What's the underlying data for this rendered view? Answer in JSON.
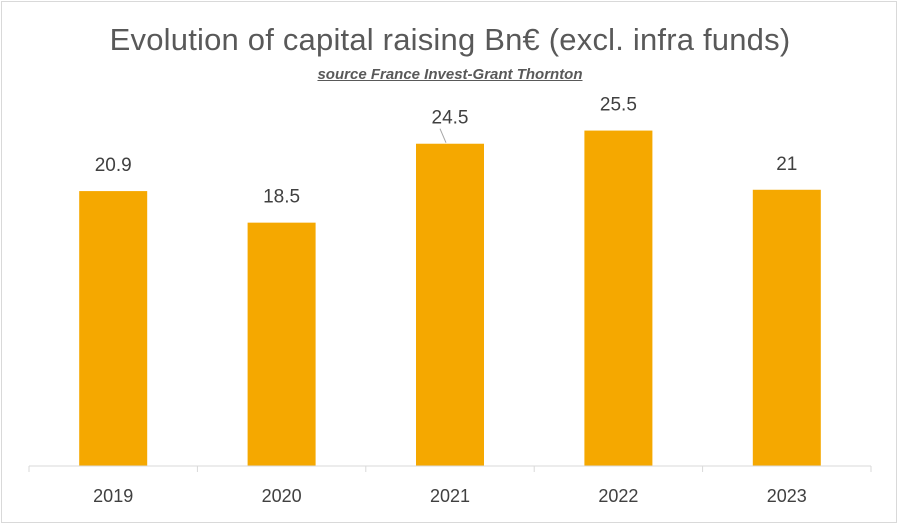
{
  "chart_data": {
    "type": "bar",
    "title": "Evolution of capital raising Bn€ (excl. infra funds)",
    "subtitle": "source France Invest-Grant Thornton",
    "categories": [
      "2019",
      "2020",
      "2021",
      "2022",
      "2023"
    ],
    "values": [
      20.9,
      18.5,
      24.5,
      25.5,
      21
    ],
    "data_labels": [
      "20.9",
      "18.5",
      "24.5",
      "25.5",
      "21"
    ],
    "xlabel": "",
    "ylabel": "",
    "ylim": [
      0,
      26
    ],
    "grid": false,
    "legend": "none",
    "bar_color": "#F5A800"
  }
}
